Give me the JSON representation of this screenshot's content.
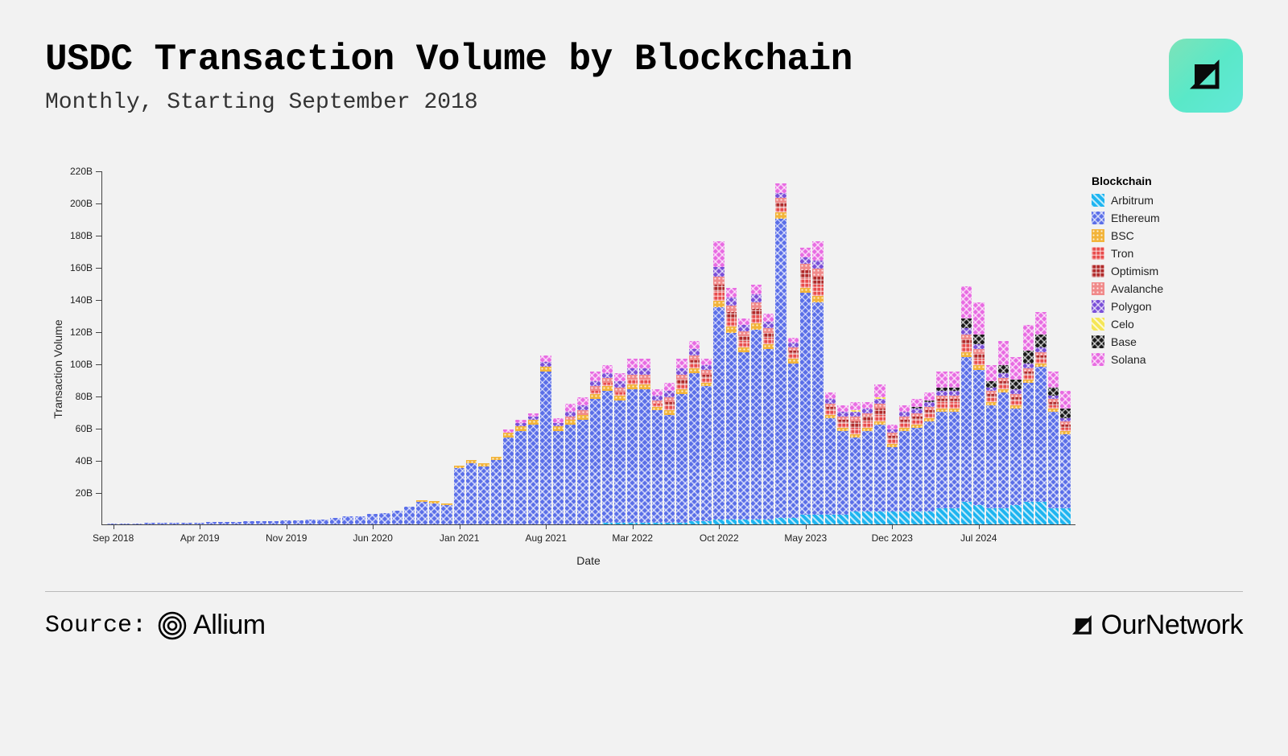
{
  "title": "USDC Transaction Volume by Blockchain",
  "subtitle": "Monthly, Starting September 2018",
  "source_label": "Source:",
  "source_name": "Allium",
  "brand": "OurNetwork",
  "chart": {
    "type": "stacked-bar",
    "y_label": "Transaction Volume",
    "x_label": "Date",
    "y_max": 220,
    "y_tick_step": 20,
    "y_suffix": "B",
    "background_color": "#f2f2f2",
    "grid_color": "#dddddd",
    "axis_color": "#444444",
    "axis_font_size": 12,
    "label_font_size": 14,
    "legend_title": "Blockchain",
    "x_ticks": [
      {
        "idx": 0,
        "label": "Sep 2018"
      },
      {
        "idx": 7,
        "label": "Apr 2019"
      },
      {
        "idx": 14,
        "label": "Nov 2019"
      },
      {
        "idx": 21,
        "label": "Jun 2020"
      },
      {
        "idx": 28,
        "label": "Jan 2021"
      },
      {
        "idx": 35,
        "label": "Aug 2021"
      },
      {
        "idx": 42,
        "label": "Mar 2022"
      },
      {
        "idx": 49,
        "label": "Oct 2022"
      },
      {
        "idx": 56,
        "label": "May 2023"
      },
      {
        "idx": 63,
        "label": "Dec 2023"
      },
      {
        "idx": 70,
        "label": "Jul 2024"
      }
    ],
    "series": [
      {
        "key": "arbitrum",
        "label": "Arbitrum",
        "color": "#1fb5f0",
        "pattern": "diag"
      },
      {
        "key": "ethereum",
        "label": "Ethereum",
        "color": "#5b6fe8",
        "pattern": "cross"
      },
      {
        "key": "bsc",
        "label": "BSC",
        "color": "#f2b43a",
        "pattern": "dots"
      },
      {
        "key": "tron",
        "label": "Tron",
        "color": "#e84c4c",
        "pattern": "grid"
      },
      {
        "key": "optimism",
        "label": "Optimism",
        "color": "#b02a2a",
        "pattern": "grid"
      },
      {
        "key": "avalanche",
        "label": "Avalanche",
        "color": "#f08a8a",
        "pattern": "dots"
      },
      {
        "key": "polygon",
        "label": "Polygon",
        "color": "#7a4fd8",
        "pattern": "cross"
      },
      {
        "key": "celo",
        "label": "Celo",
        "color": "#f5e657",
        "pattern": "diag"
      },
      {
        "key": "base",
        "label": "Base",
        "color": "#1a1a1a",
        "pattern": "cross"
      },
      {
        "key": "solana",
        "label": "Solana",
        "color": "#e86ce2",
        "pattern": "cross"
      }
    ],
    "data": [
      {
        "ethereum": 0.3
      },
      {
        "ethereum": 0.5
      },
      {
        "ethereum": 0.6
      },
      {
        "ethereum": 0.8
      },
      {
        "ethereum": 0.9
      },
      {
        "ethereum": 1.0
      },
      {
        "ethereum": 1.1
      },
      {
        "ethereum": 1.2
      },
      {
        "ethereum": 1.4
      },
      {
        "ethereum": 1.5
      },
      {
        "ethereum": 1.7
      },
      {
        "ethereum": 1.8
      },
      {
        "ethereum": 2.0
      },
      {
        "ethereum": 2.1
      },
      {
        "ethereum": 2.4
      },
      {
        "ethereum": 2.7
      },
      {
        "ethereum": 2.9
      },
      {
        "ethereum": 3.2
      },
      {
        "ethereum": 3.8
      },
      {
        "ethereum": 5.0
      },
      {
        "ethereum": 4.8
      },
      {
        "ethereum": 6.5
      },
      {
        "ethereum": 7.0
      },
      {
        "ethereum": 8.5
      },
      {
        "ethereum": 11
      },
      {
        "ethereum": 14,
        "bsc": 1
      },
      {
        "ethereum": 13,
        "bsc": 1.5
      },
      {
        "ethereum": 12,
        "bsc": 1.2
      },
      {
        "ethereum": 35,
        "bsc": 1.5
      },
      {
        "ethereum": 38,
        "bsc": 2
      },
      {
        "ethereum": 36,
        "bsc": 2
      },
      {
        "ethereum": 40,
        "bsc": 2
      },
      {
        "ethereum": 54,
        "bsc": 3,
        "solana": 2
      },
      {
        "ethereum": 58,
        "bsc": 3,
        "polygon": 2,
        "solana": 2
      },
      {
        "ethereum": 62,
        "bsc": 3,
        "polygon": 2,
        "solana": 2
      },
      {
        "ethereum": 95,
        "bsc": 3,
        "polygon": 3,
        "solana": 4
      },
      {
        "ethereum": 58,
        "bsc": 3,
        "polygon": 2,
        "solana": 3
      },
      {
        "ethereum": 62,
        "bsc": 3,
        "avalanche": 2,
        "polygon": 3,
        "solana": 5
      },
      {
        "ethereum": 65,
        "bsc": 3,
        "avalanche": 3,
        "polygon": 3,
        "solana": 5
      },
      {
        "ethereum": 78,
        "bsc": 3,
        "tron": 2,
        "avalanche": 3,
        "polygon": 3,
        "solana": 6
      },
      {
        "arbitrum": 1,
        "ethereum": 82,
        "bsc": 3,
        "tron": 2,
        "avalanche": 3,
        "polygon": 3,
        "solana": 5
      },
      {
        "arbitrum": 1,
        "ethereum": 76,
        "bsc": 3,
        "tron": 2,
        "avalanche": 3,
        "polygon": 4,
        "solana": 5
      },
      {
        "arbitrum": 1,
        "ethereum": 83,
        "bsc": 3,
        "tron": 3,
        "avalanche": 3,
        "polygon": 4,
        "solana": 6
      },
      {
        "arbitrum": 1,
        "ethereum": 83,
        "bsc": 3,
        "tron": 3,
        "avalanche": 3,
        "polygon": 4,
        "solana": 6
      },
      {
        "arbitrum": 1,
        "ethereum": 70,
        "bsc": 2,
        "tron": 2,
        "avalanche": 2,
        "polygon": 3,
        "solana": 4
      },
      {
        "arbitrum": 1,
        "ethereum": 67,
        "bsc": 3,
        "tron": 3,
        "optimism": 2,
        "avalanche": 3,
        "polygon": 4,
        "solana": 5
      },
      {
        "arbitrum": 1,
        "ethereum": 80,
        "bsc": 3,
        "tron": 3,
        "optimism": 3,
        "avalanche": 3,
        "polygon": 4,
        "solana": 6
      },
      {
        "arbitrum": 2,
        "ethereum": 92,
        "bsc": 3,
        "tron": 3,
        "optimism": 2,
        "avalanche": 3,
        "polygon": 4,
        "solana": 5
      },
      {
        "arbitrum": 2,
        "ethereum": 84,
        "bsc": 2,
        "tron": 3,
        "optimism": 2,
        "avalanche": 3,
        "polygon": 3,
        "solana": 4
      },
      {
        "arbitrum": 3,
        "ethereum": 132,
        "bsc": 4,
        "tron": 6,
        "optimism": 4,
        "avalanche": 5,
        "polygon": 6,
        "solana": 16
      },
      {
        "arbitrum": 3,
        "ethereum": 116,
        "bsc": 4,
        "tron": 5,
        "optimism": 4,
        "avalanche": 4,
        "polygon": 5,
        "solana": 6
      },
      {
        "arbitrum": 3,
        "ethereum": 104,
        "bsc": 3,
        "tron": 4,
        "optimism": 3,
        "avalanche": 3,
        "polygon": 4,
        "solana": 4
      },
      {
        "arbitrum": 3,
        "ethereum": 118,
        "bsc": 4,
        "tron": 5,
        "optimism": 4,
        "avalanche": 4,
        "polygon": 5,
        "solana": 6
      },
      {
        "arbitrum": 3,
        "ethereum": 106,
        "bsc": 3,
        "tron": 4,
        "optimism": 3,
        "avalanche": 3,
        "polygon": 4,
        "solana": 5
      },
      {
        "arbitrum": 4,
        "ethereum": 186,
        "bsc": 4,
        "tron": 3,
        "optimism": 3,
        "avalanche": 3,
        "polygon": 3,
        "solana": 6
      },
      {
        "arbitrum": 4,
        "ethereum": 96,
        "bsc": 3,
        "tron": 3,
        "optimism": 2,
        "avalanche": 2,
        "polygon": 3,
        "solana": 3
      },
      {
        "arbitrum": 6,
        "ethereum": 138,
        "bsc": 3,
        "tron": 6,
        "optimism": 5,
        "avalanche": 4,
        "polygon": 4,
        "solana": 6
      },
      {
        "arbitrum": 6,
        "ethereum": 132,
        "bsc": 4,
        "tron": 7,
        "optimism": 5,
        "avalanche": 5,
        "polygon": 5,
        "solana": 12
      },
      {
        "arbitrum": 6,
        "ethereum": 60,
        "bsc": 2,
        "tron": 3,
        "optimism": 2,
        "avalanche": 2,
        "polygon": 3,
        "solana": 4
      },
      {
        "arbitrum": 6,
        "ethereum": 52,
        "bsc": 2,
        "tron": 3,
        "optimism": 2,
        "avalanche": 2,
        "polygon": 3,
        "solana": 4
      },
      {
        "arbitrum": 8,
        "ethereum": 46,
        "bsc": 2,
        "tron": 4,
        "optimism": 4,
        "avalanche": 3,
        "polygon": 3,
        "celo": 1,
        "solana": 5
      },
      {
        "arbitrum": 8,
        "ethereum": 50,
        "bsc": 2,
        "tron": 4,
        "optimism": 3,
        "avalanche": 2,
        "polygon": 3,
        "solana": 4
      },
      {
        "arbitrum": 8,
        "ethereum": 54,
        "bsc": 2,
        "tron": 4,
        "optimism": 4,
        "avalanche": 3,
        "polygon": 3,
        "celo": 1,
        "solana": 8
      },
      {
        "arbitrum": 8,
        "ethereum": 40,
        "bsc": 2,
        "tron": 3,
        "optimism": 2,
        "avalanche": 2,
        "polygon": 2,
        "solana": 3
      },
      {
        "arbitrum": 8,
        "ethereum": 50,
        "bsc": 2,
        "tron": 3,
        "optimism": 2,
        "avalanche": 2,
        "polygon": 3,
        "solana": 4
      },
      {
        "arbitrum": 8,
        "ethereum": 52,
        "bsc": 2,
        "tron": 3,
        "optimism": 2,
        "avalanche": 2,
        "polygon": 3,
        "base": 1,
        "solana": 5
      },
      {
        "arbitrum": 8,
        "ethereum": 56,
        "bsc": 2,
        "tron": 3,
        "optimism": 2,
        "avalanche": 2,
        "polygon": 3,
        "base": 1,
        "solana": 5
      },
      {
        "arbitrum": 10,
        "ethereum": 60,
        "bsc": 2,
        "tron": 4,
        "optimism": 2,
        "avalanche": 2,
        "polygon": 3,
        "base": 2,
        "solana": 10
      },
      {
        "arbitrum": 10,
        "ethereum": 60,
        "bsc": 2,
        "tron": 4,
        "optimism": 2,
        "avalanche": 2,
        "polygon": 3,
        "base": 2,
        "solana": 10
      },
      {
        "arbitrum": 14,
        "ethereum": 90,
        "bsc": 3,
        "tron": 5,
        "optimism": 3,
        "avalanche": 3,
        "polygon": 4,
        "base": 6,
        "solana": 20
      },
      {
        "arbitrum": 12,
        "ethereum": 84,
        "bsc": 3,
        "tron": 4,
        "optimism": 3,
        "avalanche": 3,
        "polygon": 3,
        "base": 6,
        "solana": 20
      },
      {
        "arbitrum": 10,
        "ethereum": 64,
        "bsc": 2,
        "tron": 3,
        "optimism": 2,
        "avalanche": 2,
        "polygon": 2,
        "base": 4,
        "solana": 10
      },
      {
        "arbitrum": 10,
        "ethereum": 72,
        "bsc": 2,
        "tron": 3,
        "optimism": 2,
        "avalanche": 2,
        "polygon": 3,
        "base": 5,
        "solana": 15
      },
      {
        "arbitrum": 12,
        "ethereum": 60,
        "bsc": 2,
        "tron": 3,
        "optimism": 2,
        "avalanche": 2,
        "polygon": 3,
        "base": 6,
        "solana": 14
      },
      {
        "arbitrum": 14,
        "ethereum": 74,
        "bsc": 2,
        "tron": 3,
        "optimism": 2,
        "avalanche": 2,
        "polygon": 3,
        "base": 8,
        "solana": 16
      },
      {
        "arbitrum": 14,
        "ethereum": 84,
        "bsc": 2,
        "tron": 3,
        "optimism": 2,
        "avalanche": 2,
        "polygon": 3,
        "base": 8,
        "solana": 14
      },
      {
        "arbitrum": 10,
        "ethereum": 60,
        "bsc": 2,
        "tron": 2,
        "optimism": 2,
        "avalanche": 2,
        "polygon": 2,
        "base": 5,
        "solana": 10
      },
      {
        "arbitrum": 10,
        "ethereum": 46,
        "bsc": 2,
        "tron": 2,
        "optimism": 2,
        "avalanche": 2,
        "polygon": 2,
        "base": 6,
        "solana": 11
      }
    ]
  }
}
